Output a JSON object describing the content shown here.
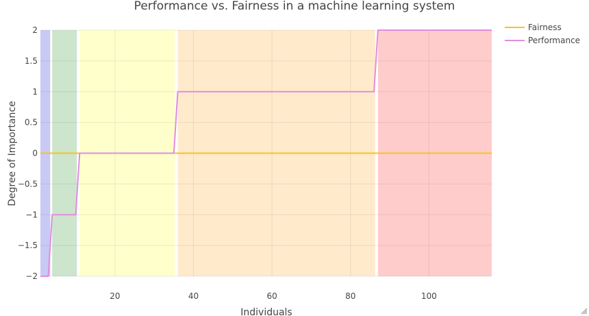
{
  "chart_data": {
    "type": "line",
    "title": "Performance vs. Fairness in a machine learning system",
    "xlabel": "Individuals",
    "ylabel": "Degree of Importance",
    "xlim": [
      1,
      116
    ],
    "ylim": [
      -2,
      2
    ],
    "x_ticks": [
      20,
      40,
      60,
      80,
      100
    ],
    "x_tick_labels": [
      "20",
      "40",
      "60",
      "80",
      "100"
    ],
    "y_ticks": [
      2,
      1.5,
      1,
      0.5,
      0,
      -0.5,
      -1,
      -1.5,
      -2
    ],
    "y_tick_labels": [
      "2",
      "1.5",
      "1",
      "0.5",
      "0",
      "−0.5",
      "−1",
      "−1.5",
      "−2"
    ],
    "grid": true,
    "legend": "top-right",
    "regions": [
      {
        "x0": 1,
        "x1": 3.5,
        "color": "#c9c9f5"
      },
      {
        "x0": 4,
        "x1": 10.3,
        "color": "#cce5cc"
      },
      {
        "x0": 11,
        "x1": 35.3,
        "color": "#ffffcc"
      },
      {
        "x0": 36,
        "x1": 86.3,
        "color": "#ffeacc"
      },
      {
        "x0": 87,
        "x1": 116,
        "color": "#ffcccc"
      }
    ],
    "series": [
      {
        "name": "Fairness",
        "color": "#f5c518",
        "points": [
          [
            1,
            0
          ],
          [
            116,
            0
          ]
        ]
      },
      {
        "name": "Performance",
        "color": "#e28be0",
        "points": [
          [
            1,
            -2
          ],
          [
            3,
            -2
          ],
          [
            4,
            -1
          ],
          [
            10,
            -1
          ],
          [
            11,
            0
          ],
          [
            35,
            0
          ],
          [
            36,
            1
          ],
          [
            86,
            1
          ],
          [
            87,
            2
          ],
          [
            116,
            2
          ]
        ]
      }
    ]
  }
}
